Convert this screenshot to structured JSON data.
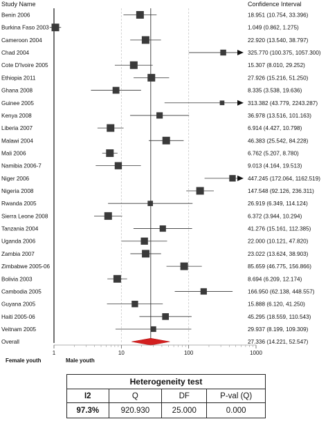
{
  "chart_data": {
    "type": "forest",
    "header_left": "Study Name",
    "header_right": "Confidence Interval",
    "x_scale": "log",
    "xlim": [
      1,
      1000
    ],
    "x_ticks": [
      "1",
      "10",
      "100",
      "1000"
    ],
    "reference_line": 27.336,
    "left_label": "Female youth",
    "right_label": "Male youth",
    "studies": [
      {
        "name": "Benin 2006",
        "estimate": 18.951,
        "lower": 10.754,
        "upper": 33.396,
        "ci_text": "18.951 (10.754, 33.396)"
      },
      {
        "name": "Burkina Faso 2003",
        "estimate": 1.049,
        "lower": 0.862,
        "upper": 1.275,
        "ci_text": "1.049 (0.862, 1.275)"
      },
      {
        "name": "Cameroon 2004",
        "estimate": 22.92,
        "lower": 13.54,
        "upper": 38.797,
        "ci_text": "22.920 (13.540, 38.797)"
      },
      {
        "name": "Chad 2004",
        "estimate": 325.77,
        "lower": 100.375,
        "upper": 1057.3,
        "ci_text": "325.770 (100.375, 1057.300)"
      },
      {
        "name": "Cote D'Ivoire 2005",
        "estimate": 15.307,
        "lower": 8.01,
        "upper": 29.252,
        "ci_text": "15.307 (8.010, 29.252)"
      },
      {
        "name": "Ethiopia 2011",
        "estimate": 27.926,
        "lower": 15.216,
        "upper": 51.25,
        "ci_text": "27.926 (15.216, 51.250)"
      },
      {
        "name": "Ghana 2008",
        "estimate": 8.335,
        "lower": 3.538,
        "upper": 19.636,
        "ci_text": "8.335 (3.538, 19.636)"
      },
      {
        "name": "Guinee 2005",
        "estimate": 313.382,
        "lower": 43.779,
        "upper": 2243.287,
        "ci_text": "313.382 (43.779, 2243.287)"
      },
      {
        "name": "Kenya 2008",
        "estimate": 36.978,
        "lower": 13.516,
        "upper": 101.163,
        "ci_text": "36.978 (13.516, 101.163)"
      },
      {
        "name": "Liberia 2007",
        "estimate": 6.914,
        "lower": 4.427,
        "upper": 10.798,
        "ci_text": "6.914 (4.427, 10.798)"
      },
      {
        "name": "Malawi 2004",
        "estimate": 46.383,
        "lower": 25.542,
        "upper": 84.228,
        "ci_text": "46.383 (25.542, 84.228)"
      },
      {
        "name": "Mali 2006",
        "estimate": 6.762,
        "lower": 5.207,
        "upper": 8.78,
        "ci_text": "6.762 (5.207, 8.780)"
      },
      {
        "name": "Namibia 2006-7",
        "estimate": 9.013,
        "lower": 4.164,
        "upper": 19.513,
        "ci_text": "9.013 (4.164, 19.513)"
      },
      {
        "name": "Niger 2006",
        "estimate": 447.245,
        "lower": 172.064,
        "upper": 1162.519,
        "ci_text": "447.245 (172.064, 1162.519)"
      },
      {
        "name": "Nigeria 2008",
        "estimate": 147.548,
        "lower": 92.126,
        "upper": 236.311,
        "ci_text": "147.548 (92.126, 236.311)"
      },
      {
        "name": "Rwanda 2005",
        "estimate": 26.919,
        "lower": 6.349,
        "upper": 114.124,
        "ci_text": "26.919 (6.349, 114.124)"
      },
      {
        "name": "Sierra Leone 2008",
        "estimate": 6.372,
        "lower": 3.944,
        "upper": 10.294,
        "ci_text": "6.372 (3.944, 10.294)"
      },
      {
        "name": "Tanzania 2004",
        "estimate": 41.276,
        "lower": 15.161,
        "upper": 112.385,
        "ci_text": "41.276 (15.161, 112.385)"
      },
      {
        "name": "Uganda 2006",
        "estimate": 22.0,
        "lower": 10.121,
        "upper": 47.82,
        "ci_text": "22.000 (10.121, 47.820)"
      },
      {
        "name": "Zambia 2007",
        "estimate": 23.022,
        "lower": 13.624,
        "upper": 38.903,
        "ci_text": "23.022 (13.624, 38.903)"
      },
      {
        "name": "Zimbabwe 2005-06",
        "estimate": 85.659,
        "lower": 46.775,
        "upper": 156.866,
        "ci_text": "85.659 (46.775, 156.866)"
      },
      {
        "name": "Bolivia 2003",
        "estimate": 8.694,
        "lower": 6.209,
        "upper": 12.174,
        "ci_text": "8.694 (6.209, 12.174)"
      },
      {
        "name": "Cambodia 2005",
        "estimate": 166.95,
        "lower": 62.138,
        "upper": 448.557,
        "ci_text": "166.950 (62.138, 448.557)"
      },
      {
        "name": "Guyana 2005",
        "estimate": 15.888,
        "lower": 6.12,
        "upper": 41.25,
        "ci_text": "15.888 (6.120, 41.250)"
      },
      {
        "name": "Haiti 2005-06",
        "estimate": 45.295,
        "lower": 18.559,
        "upper": 110.543,
        "ci_text": "45.295 (18.559, 110.543)"
      },
      {
        "name": "Veitnam 2005",
        "estimate": 29.937,
        "lower": 8.199,
        "upper": 109.309,
        "ci_text": "29.937 (8.199, 109.309)"
      }
    ],
    "overall": {
      "name": "Overall",
      "estimate": 27.336,
      "lower": 14.221,
      "upper": 52.547,
      "ci_text": "27.336 (14.221, 52.547)"
    },
    "colors": {
      "marker": "#3a3a3a",
      "overall": "#d31f1f",
      "line": "#333333"
    }
  },
  "heterogeneity": {
    "title": "Heterogeneity test",
    "headers": [
      "I2",
      "Q",
      "DF",
      "P-val (Q)"
    ],
    "values": [
      "97.3%",
      "920.930",
      "25.000",
      "0.000"
    ]
  }
}
